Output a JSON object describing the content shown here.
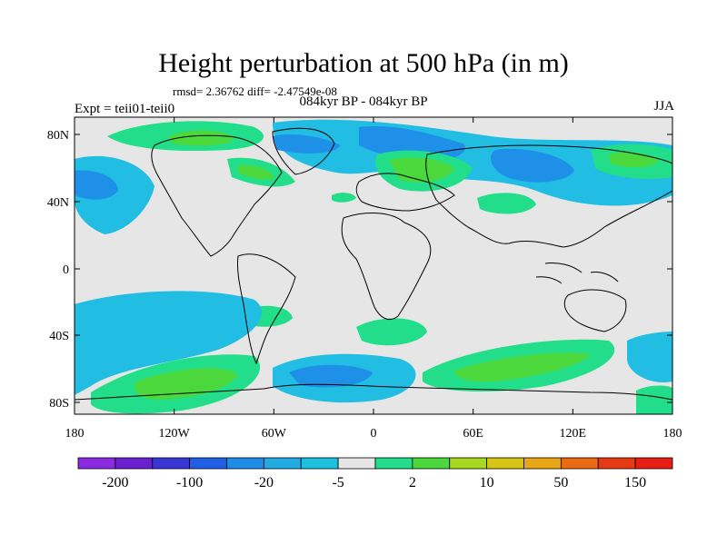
{
  "title": "Height perturbation at 500 hPa (in m)",
  "stats_line": "rmsd= 2.36762 diff= -2.47549e-08",
  "subtitle": "084kyr BP - 084kyr BP",
  "experiment": "Expt = teii01-teii0",
  "season": "JJA",
  "lat_ticks": [
    "80N",
    "40N",
    "0",
    "40S",
    "80S"
  ],
  "lon_ticks": [
    "180",
    "120W",
    "60W",
    "0",
    "60E",
    "120E",
    "180"
  ],
  "colorbar": {
    "colors": [
      "#8a2be2",
      "#6a1fd0",
      "#3a36d6",
      "#1e5fe6",
      "#1e8ce8",
      "#21abe3",
      "#1bc1df",
      "#e6e6e6",
      "#22dd8a",
      "#4ad83c",
      "#a9d91f",
      "#d6c515",
      "#e8a514",
      "#ec6a12",
      "#e83a12",
      "#e61e14"
    ],
    "labels": [
      "-200",
      "-100",
      "-20",
      "-5",
      "2",
      "10",
      "50",
      "150"
    ]
  },
  "map_colors": {
    "background": "#e6e6e6",
    "light_blue": "#21bde3",
    "blue": "#1e90e8",
    "green_light": "#22dd8a",
    "green": "#4ad83c"
  }
}
